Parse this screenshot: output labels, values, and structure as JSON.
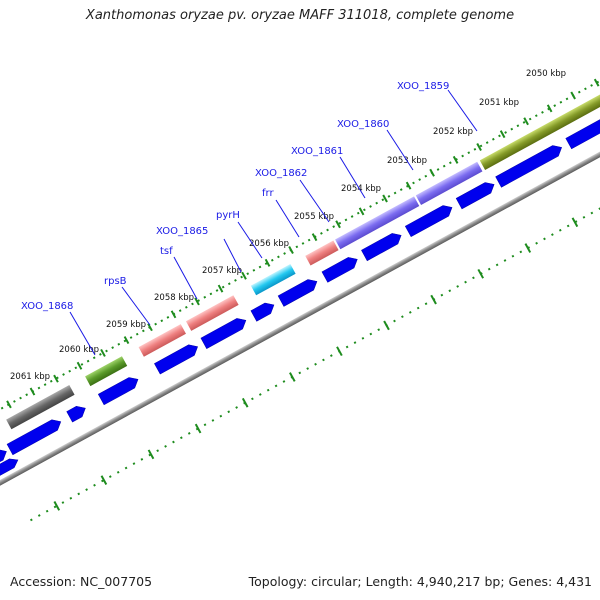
{
  "title": "Xanthomonas oryzae pv. oryzae MAFF 311018, complete genome",
  "footer": {
    "accession": "Accession: NC_007705",
    "summary": "Topology: circular; Length: 4,940,217 bp; Genes: 4,431"
  },
  "scale_labels": [
    "2061 kbp",
    "2060 kbp",
    "2059 kbp",
    "2058 kbp",
    "2057 kbp",
    "2056 kbp",
    "2055 kbp",
    "2054 kbp",
    "2053 kbp",
    "2052 kbp",
    "2051 kbp",
    "2050 kbp"
  ],
  "gene_labels": [
    "XOO_1868",
    "rpsB",
    "tsf",
    "XOO_1865",
    "pyrH",
    "frr",
    "XOO_1862",
    "XOO_1861",
    "XOO_1860",
    "XOO_1859"
  ],
  "colors": {
    "cds_arrow": "#0000ee",
    "backbone": "#999999",
    "tick": "#1e8c1e",
    "label_blue": "#1a1ae6"
  }
}
